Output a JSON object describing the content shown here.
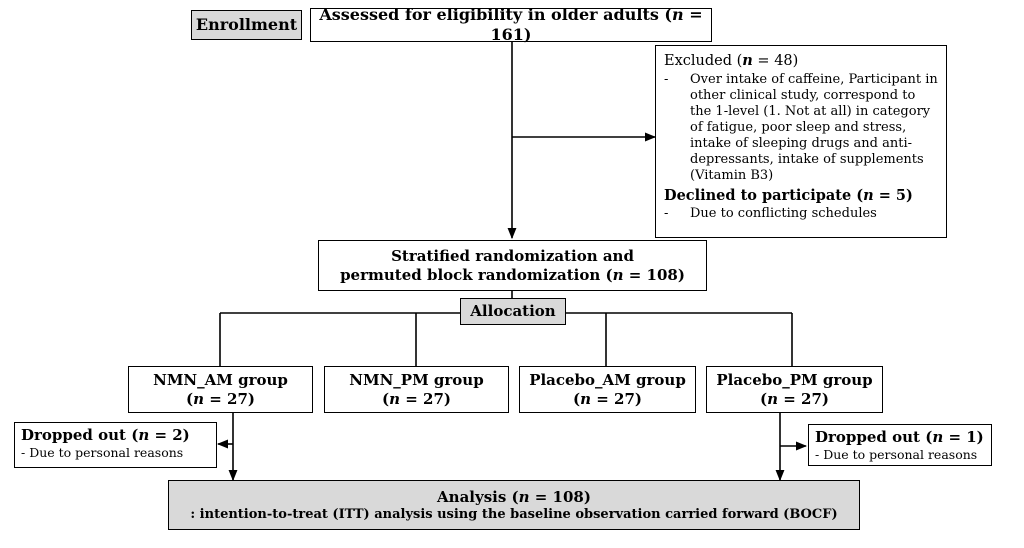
{
  "enrollment": {
    "label": "Enrollment",
    "assessed_text": "Assessed for eligibility in older adults (",
    "n": "n",
    "assessed_count": " = 161)"
  },
  "excluded": {
    "title_text": "Excluded (",
    "n": "n",
    "title_count": " = 48)",
    "reason": "Over intake of caffeine, Participant in other clinical study, correspond to the 1-level (1. Not at all) in category of fatigue, poor sleep and stress, intake of sleeping drugs and anti-depressants, intake of supplements (Vitamin B3)",
    "declined_text": "Declined to participate (",
    "declined_count": " = 5)",
    "declined_reason": "Due to conflicting schedules"
  },
  "randomization": {
    "line1": "Stratified randomization and",
    "line2_text": "permuted block randomization (",
    "n": "n",
    "line2_count": " = 108)"
  },
  "allocation": {
    "label": "Allocation"
  },
  "groups": [
    {
      "name": "NMN_AM group",
      "n": "n",
      "count": " = 27)"
    },
    {
      "name": "NMN_PM group",
      "n": "n",
      "count": " = 27)"
    },
    {
      "name": "Placebo_AM group",
      "n": "n",
      "count": " = 27)"
    },
    {
      "name": "Placebo_PM group",
      "n": "n",
      "count": " = 27)"
    }
  ],
  "dropped_left": {
    "title_text": "Dropped out (",
    "n": "n",
    "title_count": " = 2)",
    "reason": "- Due to personal reasons"
  },
  "dropped_right": {
    "title_text": "Dropped out (",
    "n": "n",
    "title_count": " = 1)",
    "reason": "- Due to personal reasons"
  },
  "analysis": {
    "title_text": "Analysis (",
    "n": "n",
    "title_count": " = 108)",
    "subtitle": ": intention-to-treat (ITT) analysis using the baseline observation carried forward (BOCF)"
  },
  "colors": {
    "box_fill": "#ffffff",
    "gray_fill": "#d9d9d9",
    "line": "#000000"
  }
}
